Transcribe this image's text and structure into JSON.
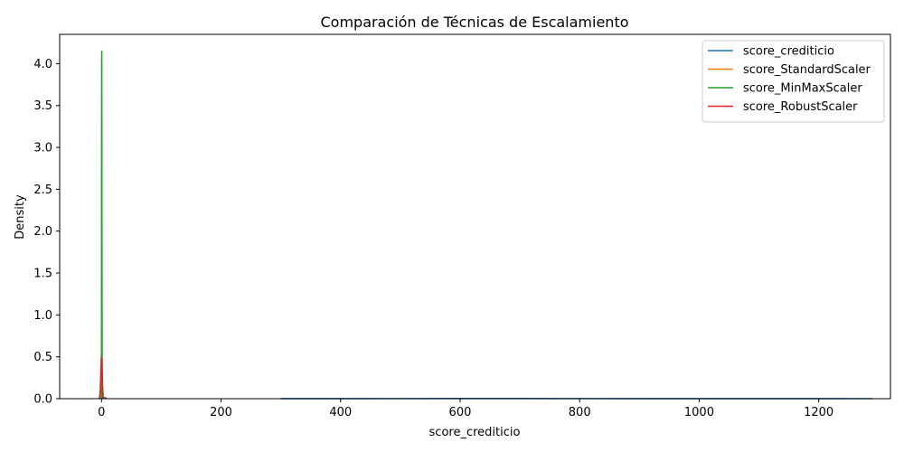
{
  "chart_data": {
    "type": "line",
    "title": "Comparación de Técnicas de Escalamiento",
    "xlabel": "score_crediticio",
    "ylabel": "Density",
    "xlim": [
      -70,
      1320
    ],
    "ylim": [
      0,
      4.35
    ],
    "xticks": [
      0,
      200,
      400,
      600,
      800,
      1000,
      1200
    ],
    "yticks": [
      0.0,
      0.5,
      1.0,
      1.5,
      2.0,
      2.5,
      3.0,
      3.5,
      4.0
    ],
    "grid": false,
    "legend_position": "top-right",
    "series": [
      {
        "name": "score_crediticio",
        "color": "#1f77b4",
        "x": [
          300,
          400,
          500,
          600,
          650,
          700,
          800,
          900,
          1000,
          1100,
          1200,
          1290
        ],
        "y": [
          0.0003,
          0.0009,
          0.0014,
          0.0018,
          0.0019,
          0.0018,
          0.0014,
          0.0009,
          0.0006,
          0.0004,
          0.0002,
          0.0001
        ]
      },
      {
        "name": "score_StandardScaler",
        "color": "#ff7f0e",
        "x": [
          -3,
          -2,
          -1,
          0,
          1,
          2,
          3
        ],
        "y": [
          0.005,
          0.05,
          0.24,
          0.4,
          0.24,
          0.05,
          0.005
        ]
      },
      {
        "name": "score_MinMaxScaler",
        "color": "#2ca02c",
        "x": [
          -0.3,
          -0.15,
          0.0,
          0.1,
          0.2,
          0.3,
          0.4,
          0.5,
          0.6,
          0.75,
          0.9,
          1.05,
          1.2,
          1.35
        ],
        "y": [
          0.0,
          0.05,
          0.7,
          1.9,
          3.4,
          4.0,
          4.15,
          4.0,
          3.3,
          2.1,
          1.1,
          0.35,
          0.06,
          0.0
        ]
      },
      {
        "name": "score_RobustScaler",
        "color": "#d62728",
        "x": [
          -4,
          -3,
          -2,
          -1,
          -0.5,
          0,
          0.5,
          1,
          2,
          3,
          4,
          5,
          6,
          7,
          8,
          9
        ],
        "y": [
          0.0,
          0.02,
          0.1,
          0.33,
          0.45,
          0.5,
          0.45,
          0.33,
          0.1,
          0.02,
          0.005,
          0.008,
          0.012,
          0.008,
          0.003,
          0.0
        ]
      }
    ]
  }
}
